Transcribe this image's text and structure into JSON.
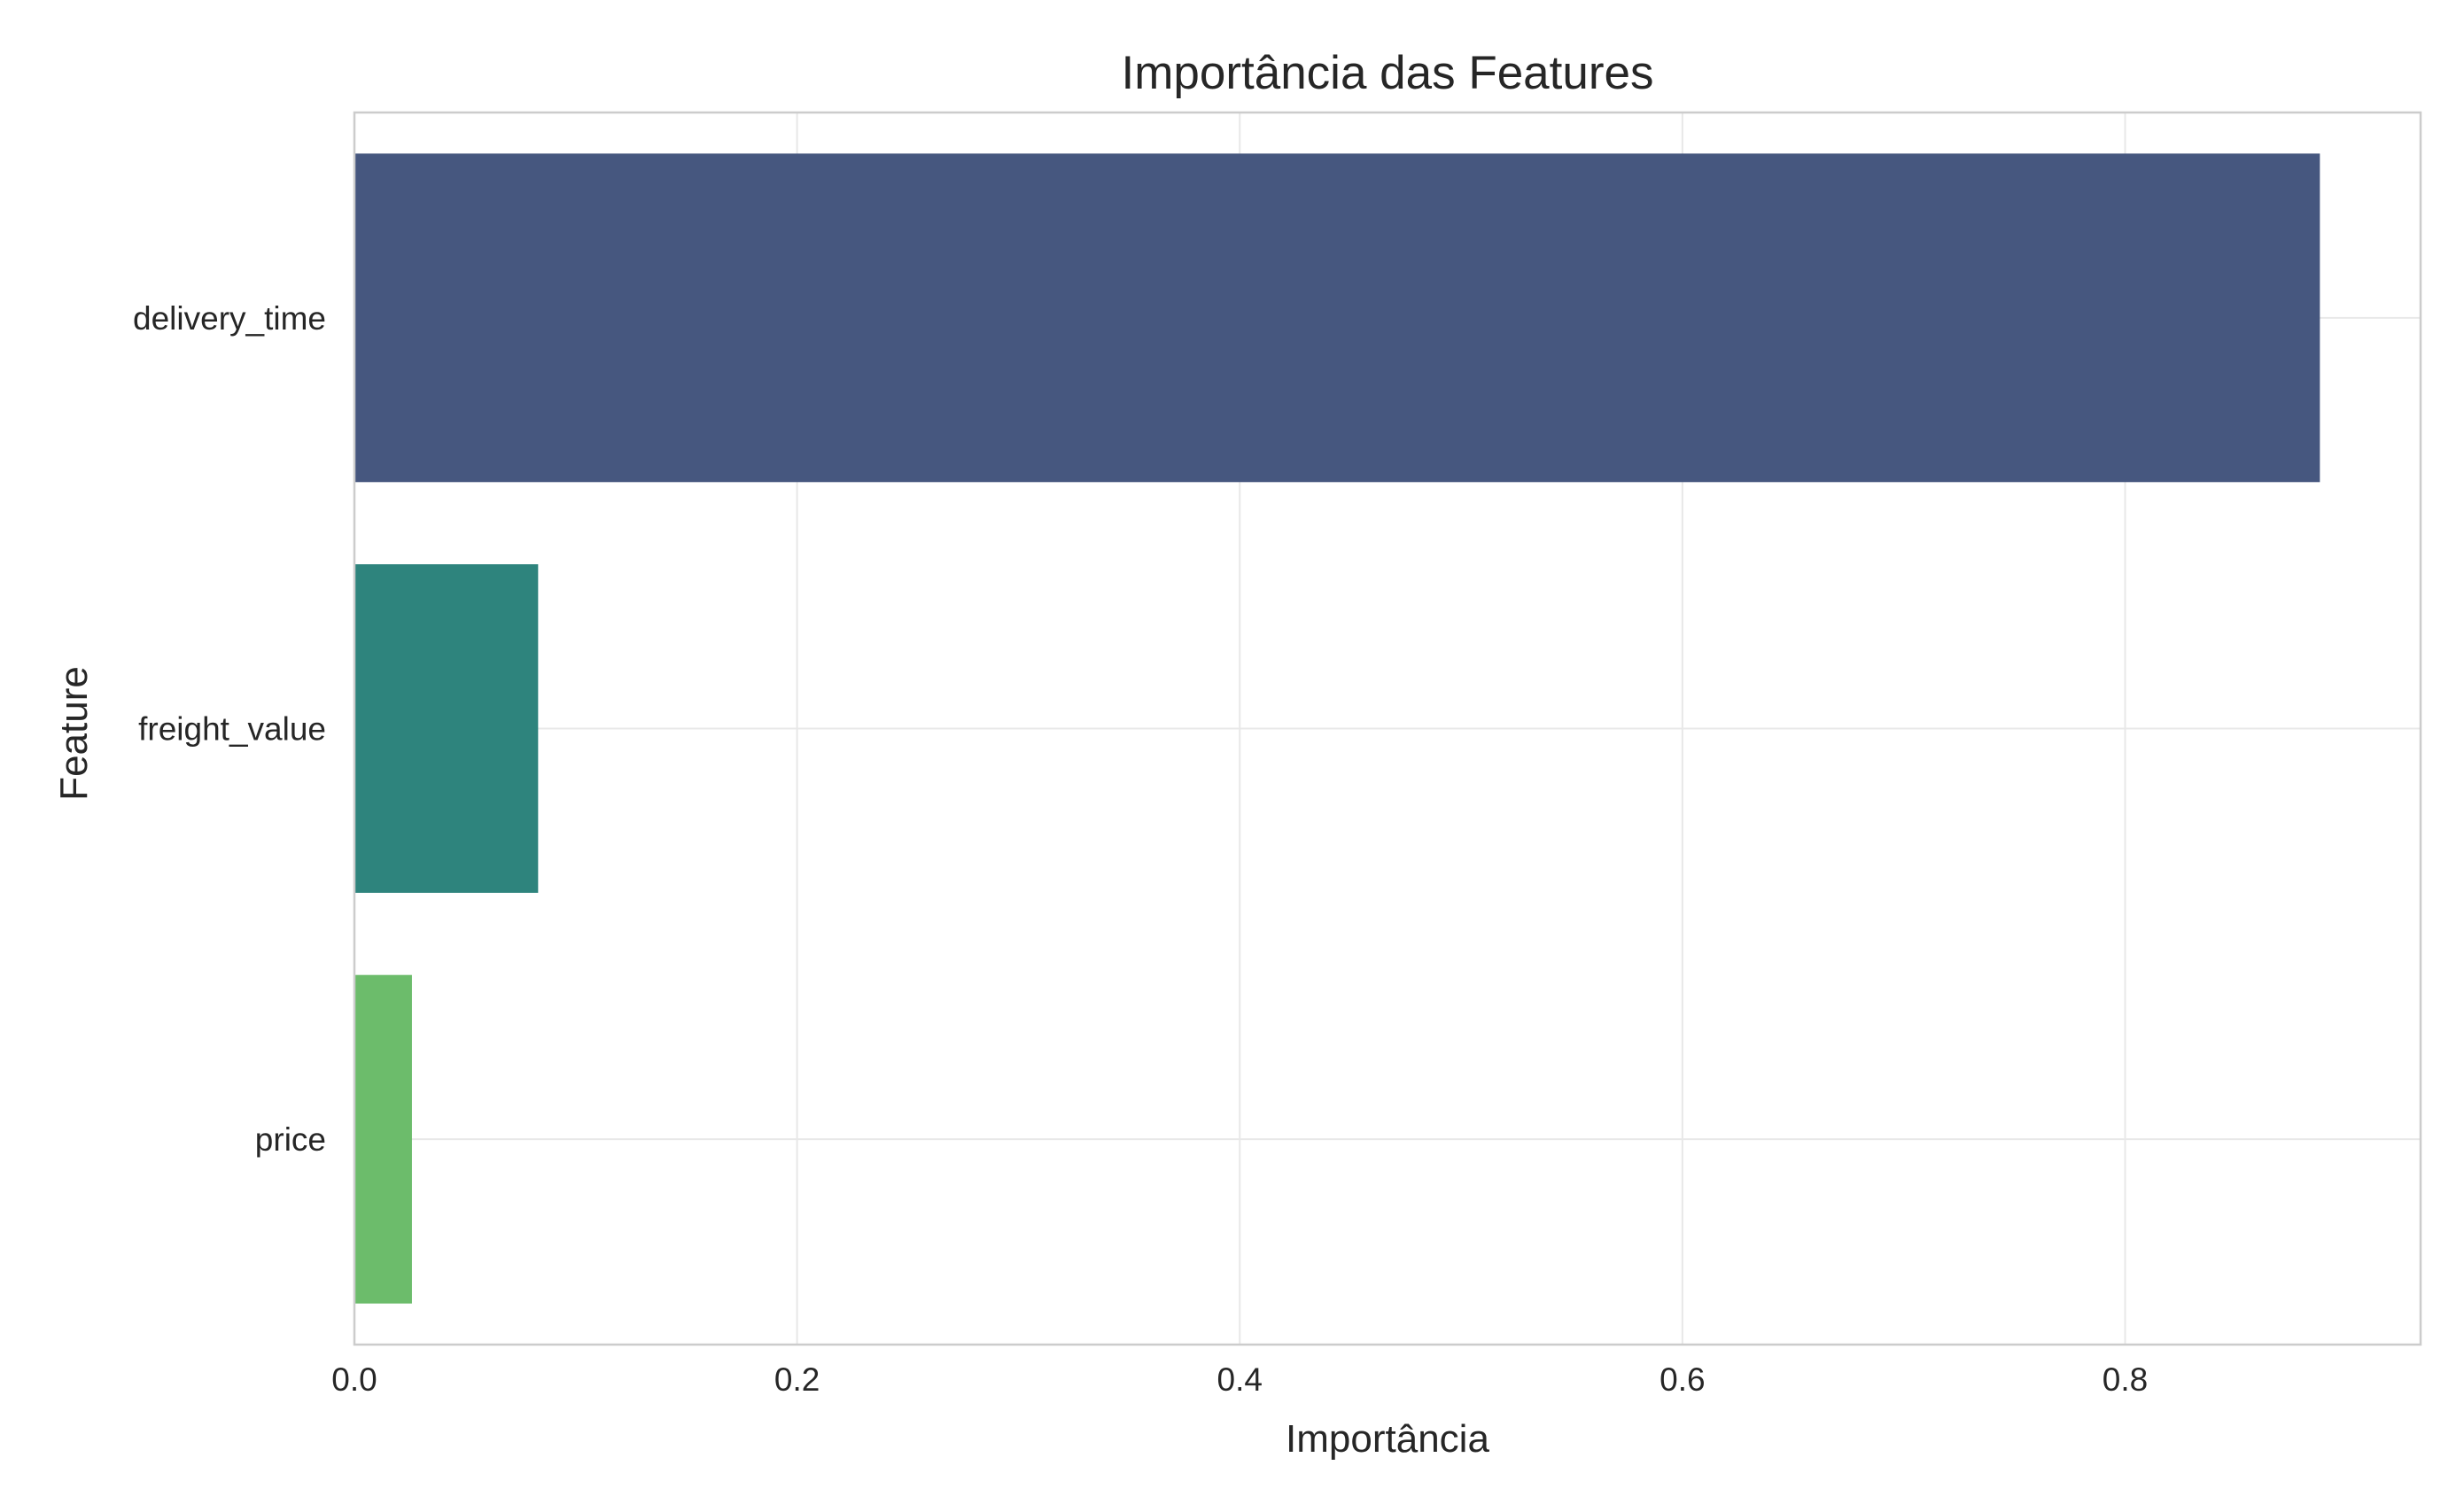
{
  "chart_data": {
    "type": "bar",
    "orientation": "horizontal",
    "title": "Importância das Features",
    "xlabel": "Importância",
    "ylabel": "Feature",
    "categories": [
      "delivery_time",
      "freight_value",
      "price"
    ],
    "values": [
      0.888,
      0.083,
      0.026
    ],
    "colors": [
      "#46577f",
      "#2e847d",
      "#6cbc6b"
    ],
    "xlim": [
      0,
      0.9335
    ],
    "xticks": [
      0.0,
      0.2,
      0.4,
      0.6,
      0.8
    ],
    "xtick_labels": [
      "0.0",
      "0.2",
      "0.4",
      "0.6",
      "0.8"
    ],
    "grid": true,
    "legend": "none"
  }
}
